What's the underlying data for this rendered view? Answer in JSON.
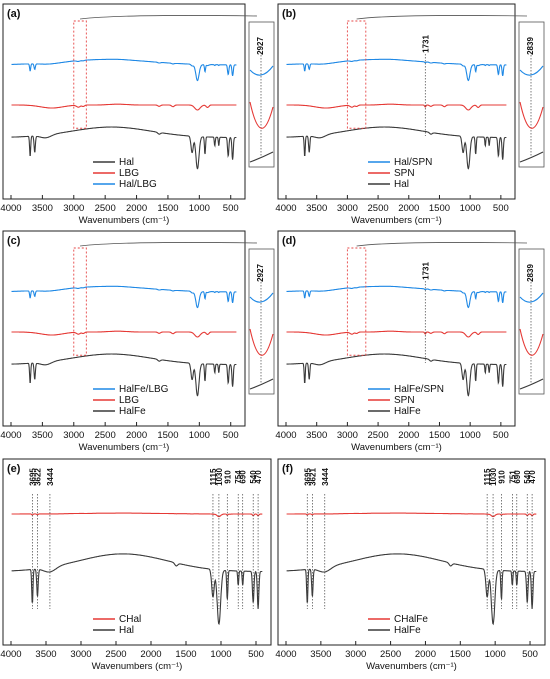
{
  "colors": {
    "black": "#3a3a3a",
    "red": "#e53935",
    "blue": "#1e88e5"
  },
  "chart_data": [
    {
      "panel": "(a)",
      "type": "line",
      "xlabel": "Wavenumbers (cm⁻¹)",
      "xlim": [
        4000,
        400
      ],
      "xticks": [
        4000,
        3500,
        3000,
        2500,
        2000,
        1500,
        1000,
        500
      ],
      "legend": [
        "Hal",
        "LBG",
        "Hal/LBG"
      ],
      "series": [
        {
          "name": "Hal/LBG",
          "color": "blue",
          "offset": 0
        },
        {
          "name": "LBG",
          "color": "red",
          "offset": 1
        },
        {
          "name": "Hal",
          "color": "black",
          "offset": 2
        }
      ],
      "highlight_range": [
        3000,
        2800
      ],
      "inset_label": "2927"
    },
    {
      "panel": "(b)",
      "type": "line",
      "xlabel": "Wavenumbers (cm⁻¹)",
      "xlim": [
        4000,
        400
      ],
      "xticks": [
        4000,
        3500,
        3000,
        2500,
        2000,
        1500,
        1000,
        500
      ],
      "legend": [
        "Hal/SPN",
        "SPN",
        "Hal"
      ],
      "series": [
        {
          "name": "Hal/SPN",
          "color": "blue",
          "offset": 0
        },
        {
          "name": "SPN",
          "color": "red",
          "offset": 1
        },
        {
          "name": "Hal",
          "color": "black",
          "offset": 2
        }
      ],
      "highlight_range": [
        3000,
        2700
      ],
      "annotation": {
        "x": 1731,
        "label": "1731"
      },
      "inset_label": "2839"
    },
    {
      "panel": "(c)",
      "type": "line",
      "xlabel": "Wavenumbers (cm⁻¹)",
      "xlim": [
        4000,
        400
      ],
      "xticks": [
        4000,
        3500,
        3000,
        2500,
        2000,
        1500,
        1000,
        500
      ],
      "legend": [
        "HalFe/LBG",
        "LBG",
        "HalFe"
      ],
      "series": [
        {
          "name": "HalFe/LBG",
          "color": "blue",
          "offset": 0
        },
        {
          "name": "LBG",
          "color": "red",
          "offset": 1
        },
        {
          "name": "HalFe",
          "color": "black",
          "offset": 2
        }
      ],
      "highlight_range": [
        3000,
        2800
      ],
      "inset_label": "2927"
    },
    {
      "panel": "(d)",
      "type": "line",
      "xlabel": "Wavenumbers (cm⁻¹)",
      "xlim": [
        4000,
        400
      ],
      "xticks": [
        4000,
        3500,
        3000,
        2500,
        2000,
        1500,
        1000,
        500
      ],
      "legend": [
        "HalFe/SPN",
        "SPN",
        "HalFe"
      ],
      "series": [
        {
          "name": "HalFe/SPN",
          "color": "blue",
          "offset": 0
        },
        {
          "name": "SPN",
          "color": "red",
          "offset": 1
        },
        {
          "name": "HalFe",
          "color": "black",
          "offset": 2
        }
      ],
      "highlight_range": [
        3000,
        2700
      ],
      "annotation": {
        "x": 1731,
        "label": "1731"
      },
      "inset_label": "2839"
    },
    {
      "panel": "(e)",
      "type": "line",
      "xlabel": "Wavenumbers (cm⁻¹)",
      "xlim": [
        4000,
        400
      ],
      "xticks": [
        4000,
        3500,
        3000,
        2500,
        2000,
        1500,
        1000,
        500
      ],
      "legend": [
        "CHal",
        "Hal"
      ],
      "series": [
        {
          "name": "CHal",
          "color": "red",
          "offset": 0
        },
        {
          "name": "Hal",
          "color": "black",
          "offset": 1
        }
      ],
      "peak_labels": [
        3695,
        3622,
        3444,
        1115,
        1030,
        910,
        754,
        690,
        540,
        470
      ]
    },
    {
      "panel": "(f)",
      "type": "line",
      "xlabel": "Wavenumbers (cm⁻¹)",
      "xlim": [
        4000,
        400
      ],
      "xticks": [
        4000,
        3500,
        3000,
        2500,
        2000,
        1500,
        1000,
        500
      ],
      "legend": [
        "CHalFe",
        "HalFe"
      ],
      "series": [
        {
          "name": "CHalFe",
          "color": "red",
          "offset": 0
        },
        {
          "name": "HalFe",
          "color": "black",
          "offset": 1
        }
      ],
      "peak_labels": [
        3695,
        3621,
        3444,
        1115,
        1030,
        910,
        751,
        690,
        540,
        470
      ]
    }
  ]
}
